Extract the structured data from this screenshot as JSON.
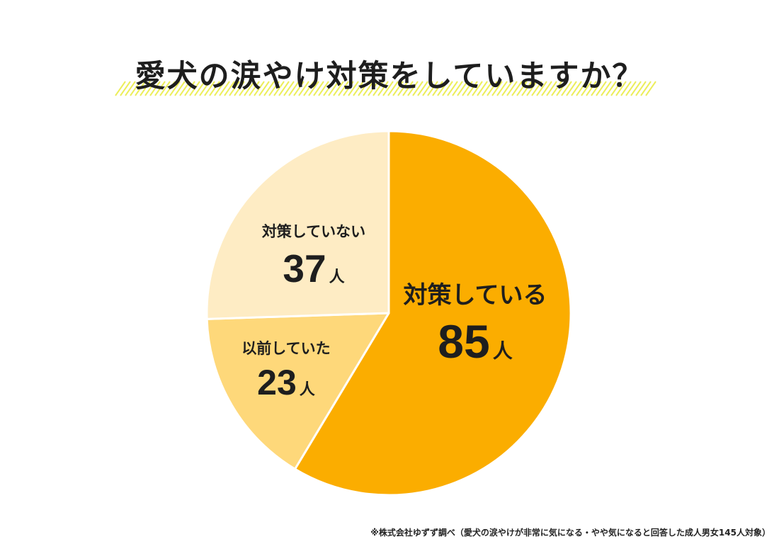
{
  "title": "愛犬の涙やけ対策をしていますか？",
  "footnote": "※株式会社ゆずず調べ（愛犬の涙やけが非常に気になる・やや気になると回答した成人男女145人対象）",
  "colors": {
    "slice_1": "#fbad00",
    "slice_2": "#fed87a",
    "slice_3": "#feecc4",
    "hatch": "#ecee5a",
    "text": "#1e1e1e",
    "slice_border": "#ffffff"
  },
  "chart_data": {
    "type": "pie",
    "title": "愛犬の涙やけ対策をしていますか？",
    "unit": "人",
    "slices": [
      {
        "label": "対策している",
        "value": 85
      },
      {
        "label": "以前していた",
        "value": 23
      },
      {
        "label": "対策していない",
        "value": 37
      }
    ],
    "start": "12 o'clock",
    "direction": "clockwise"
  }
}
